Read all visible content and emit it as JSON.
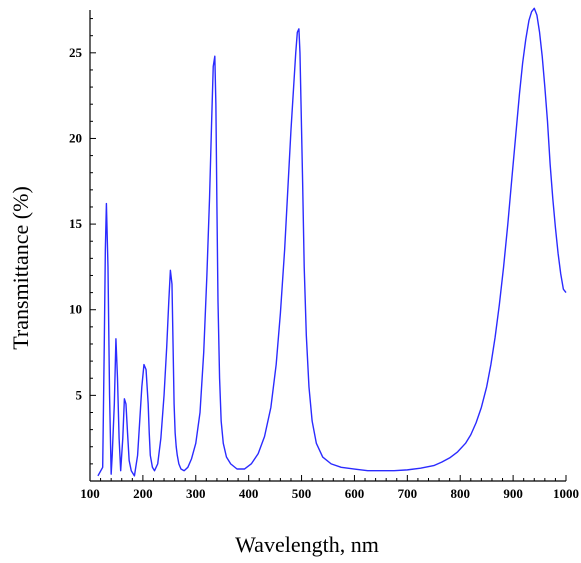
{
  "chart_data": {
    "type": "line",
    "title": "",
    "xlabel": "Wavelength, nm",
    "ylabel": "Transmittance (%)",
    "xlim": [
      100,
      1000
    ],
    "ylim": [
      0,
      27.5
    ],
    "x_ticks": [
      100,
      200,
      300,
      400,
      500,
      600,
      700,
      800,
      900,
      1000
    ],
    "y_ticks": [
      5,
      10,
      15,
      20,
      25
    ],
    "grid": false,
    "colors": {
      "line": "#2b2bff",
      "axis": "#000000"
    },
    "series": [
      {
        "x": [
          115,
          124,
          127,
          129,
          131,
          134,
          137,
          140,
          142,
          146,
          149,
          152,
          155,
          158,
          162,
          165,
          168,
          171,
          174,
          178,
          184,
          190,
          194,
          198,
          202,
          206,
          210,
          212,
          214,
          218,
          222,
          228,
          234,
          240,
          245,
          249,
          252,
          255,
          257,
          259,
          261,
          263,
          265,
          268,
          272,
          278,
          285,
          292,
          300,
          308,
          315,
          321,
          326,
          330,
          333,
          336,
          338,
          340,
          342,
          345,
          348,
          352,
          358,
          366,
          378,
          392,
          405,
          418,
          430,
          442,
          452,
          460,
          468,
          474,
          480,
          485,
          489,
          492,
          495,
          497,
          499,
          502,
          505,
          509,
          514,
          520,
          528,
          540,
          556,
          575,
          600,
          625,
          650,
          675,
          700,
          725,
          750,
          765,
          780,
          795,
          810,
          820,
          830,
          840,
          850,
          858,
          866,
          874,
          882,
          890,
          898,
          905,
          912,
          918,
          924,
          930,
          935,
          940,
          945,
          950,
          955,
          960,
          965,
          970,
          975,
          980,
          985,
          990,
          995,
          1000
        ],
        "values": [
          0.3,
          0.8,
          8.0,
          13.5,
          16.2,
          12.5,
          5.0,
          0.4,
          1.5,
          4.5,
          8.3,
          6.0,
          2.5,
          0.6,
          2.5,
          4.8,
          4.5,
          2.8,
          1.2,
          0.6,
          0.3,
          1.5,
          3.5,
          5.5,
          6.8,
          6.5,
          4.5,
          2.8,
          1.5,
          0.8,
          0.6,
          1.0,
          2.5,
          5.0,
          7.8,
          10.5,
          12.3,
          11.5,
          8.0,
          4.5,
          2.8,
          2.0,
          1.5,
          1.0,
          0.7,
          0.6,
          0.8,
          1.3,
          2.2,
          4.0,
          7.5,
          12.0,
          16.5,
          21.0,
          24.2,
          24.8,
          22.0,
          16.0,
          10.5,
          6.0,
          3.5,
          2.2,
          1.4,
          1.0,
          0.7,
          0.7,
          1.0,
          1.6,
          2.6,
          4.3,
          6.8,
          9.8,
          13.5,
          17.0,
          20.5,
          23.0,
          25.0,
          26.2,
          26.4,
          25.0,
          22.0,
          17.5,
          12.5,
          8.5,
          5.5,
          3.5,
          2.2,
          1.4,
          1.0,
          0.8,
          0.7,
          0.6,
          0.6,
          0.6,
          0.65,
          0.75,
          0.9,
          1.1,
          1.35,
          1.7,
          2.2,
          2.7,
          3.4,
          4.3,
          5.5,
          6.8,
          8.4,
          10.3,
          12.5,
          15.0,
          17.8,
          20.2,
          22.6,
          24.4,
          25.8,
          26.9,
          27.4,
          27.6,
          27.2,
          26.2,
          24.8,
          23.0,
          21.0,
          18.5,
          16.5,
          14.8,
          13.3,
          12.1,
          11.2,
          11.0
        ]
      }
    ]
  }
}
